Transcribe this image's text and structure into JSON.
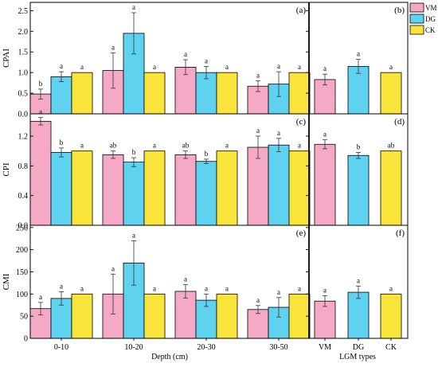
{
  "colors": {
    "VM": "#f6a9c6",
    "DG": "#5fd2f0",
    "CK": "#f9e43b",
    "stroke": "#000000"
  },
  "legend": {
    "items": [
      {
        "key": "VM",
        "label": "VM"
      },
      {
        "key": "DG",
        "label": "DG"
      },
      {
        "key": "CK",
        "label": "CK"
      }
    ],
    "placement": "top-right"
  },
  "x_axis": {
    "left_label": "Depth (cm)",
    "right_label": "LGM types",
    "depth_categories": [
      "0-10",
      "10-20",
      "20-30",
      "30-50"
    ],
    "lgm_categories": [
      "VM",
      "DG",
      "CK"
    ]
  },
  "chart_data": [
    {
      "type": "bar",
      "panel": "(a)",
      "ylabel": "CPAI",
      "ylim": [
        0,
        2.7
      ],
      "yticks": [
        0.0,
        0.5,
        1.0,
        1.5,
        2.0,
        2.5
      ],
      "ytick_labels": [
        "0.0",
        "0.5",
        "1.0",
        "1.5",
        "2.0",
        "2.5"
      ],
      "xlabel": "Depth (cm)",
      "categories": [
        "0-10",
        "10-20",
        "20-30",
        "30-50"
      ],
      "series": [
        {
          "name": "VM",
          "values": [
            0.48,
            1.05,
            1.13,
            0.67
          ],
          "errors": [
            0.12,
            0.43,
            0.18,
            0.13
          ],
          "letters": [
            "b",
            "a",
            "a",
            "a"
          ]
        },
        {
          "name": "DG",
          "values": [
            0.9,
            1.95,
            1.0,
            0.72
          ],
          "errors": [
            0.12,
            0.5,
            0.15,
            0.3
          ],
          "letters": [
            "a",
            "a",
            "a",
            "a"
          ]
        },
        {
          "name": "CK",
          "values": [
            1.0,
            1.0,
            1.0,
            1.0
          ],
          "errors": [
            0,
            0,
            0,
            0
          ],
          "letters": [
            "a",
            "a",
            "a",
            "a"
          ]
        }
      ]
    },
    {
      "type": "bar",
      "panel": "(b)",
      "ylim": [
        0,
        2.7
      ],
      "xlabel": "LGM types",
      "categories": [
        "VM",
        "DG",
        "CK"
      ],
      "values": [
        0.83,
        1.15,
        1.0
      ],
      "errors": [
        0.13,
        0.17,
        0
      ],
      "letters": [
        "a",
        "a",
        "a"
      ]
    },
    {
      "type": "bar",
      "panel": "(c)",
      "ylabel": "CPI",
      "ylim": [
        0,
        1.5
      ],
      "yticks": [
        0.0,
        0.4,
        0.8,
        1.2
      ],
      "ytick_labels": [
        "0.0",
        "0.4",
        "0.8",
        "1.2"
      ],
      "xlabel": "Depth (cm)",
      "categories": [
        "0-10",
        "10-20",
        "20-30",
        "30-50"
      ],
      "series": [
        {
          "name": "VM",
          "values": [
            1.4,
            0.95,
            0.95,
            1.05
          ],
          "errors": [
            0.05,
            0.05,
            0.05,
            0.15
          ],
          "letters": [
            "a",
            "ab",
            "ab",
            "a"
          ]
        },
        {
          "name": "DG",
          "values": [
            0.98,
            0.85,
            0.86,
            1.08
          ],
          "errors": [
            0.06,
            0.06,
            0.03,
            0.09
          ],
          "letters": [
            "b",
            "b",
            "b",
            "a"
          ]
        },
        {
          "name": "CK",
          "values": [
            1.0,
            1.0,
            1.0,
            1.0
          ],
          "errors": [
            0,
            0,
            0,
            0
          ],
          "letters": [
            "a",
            "a",
            "a",
            "a"
          ]
        }
      ]
    },
    {
      "type": "bar",
      "panel": "(d)",
      "ylim": [
        0,
        1.5
      ],
      "xlabel": "LGM types",
      "categories": [
        "VM",
        "DG",
        "CK"
      ],
      "values": [
        1.09,
        0.94,
        1.0
      ],
      "errors": [
        0.06,
        0.04,
        0
      ],
      "letters": [
        "a",
        "b",
        "ab"
      ]
    },
    {
      "type": "bar",
      "panel": "(e)",
      "ylabel": "CMI",
      "ylim": [
        0,
        255
      ],
      "yticks": [
        0,
        50,
        100,
        150,
        200,
        250
      ],
      "ytick_labels": [
        "0",
        "50",
        "100",
        "150",
        "200",
        "250"
      ],
      "xlabel": "Depth (cm)",
      "categories": [
        "0-10",
        "10-20",
        "20-30",
        "30-50"
      ],
      "series": [
        {
          "name": "VM",
          "values": [
            67,
            100,
            106,
            65
          ],
          "errors": [
            14,
            45,
            15,
            9
          ],
          "letters": [
            "a",
            "a",
            "a",
            "a"
          ]
        },
        {
          "name": "DG",
          "values": [
            90,
            170,
            86,
            70
          ],
          "errors": [
            15,
            50,
            14,
            22
          ],
          "letters": [
            "a",
            "a",
            "a",
            "a"
          ]
        },
        {
          "name": "CK",
          "values": [
            100,
            100,
            100,
            100
          ],
          "errors": [
            0,
            0,
            0,
            0
          ],
          "letters": [
            "a",
            "a",
            "a",
            "a"
          ]
        }
      ]
    },
    {
      "type": "bar",
      "panel": "(f)",
      "ylim": [
        0,
        255
      ],
      "xlabel": "LGM types",
      "categories": [
        "VM",
        "DG",
        "CK"
      ],
      "values": [
        84,
        104,
        100
      ],
      "errors": [
        12,
        14,
        0
      ],
      "letters": [
        "a",
        "a",
        "a"
      ]
    }
  ]
}
